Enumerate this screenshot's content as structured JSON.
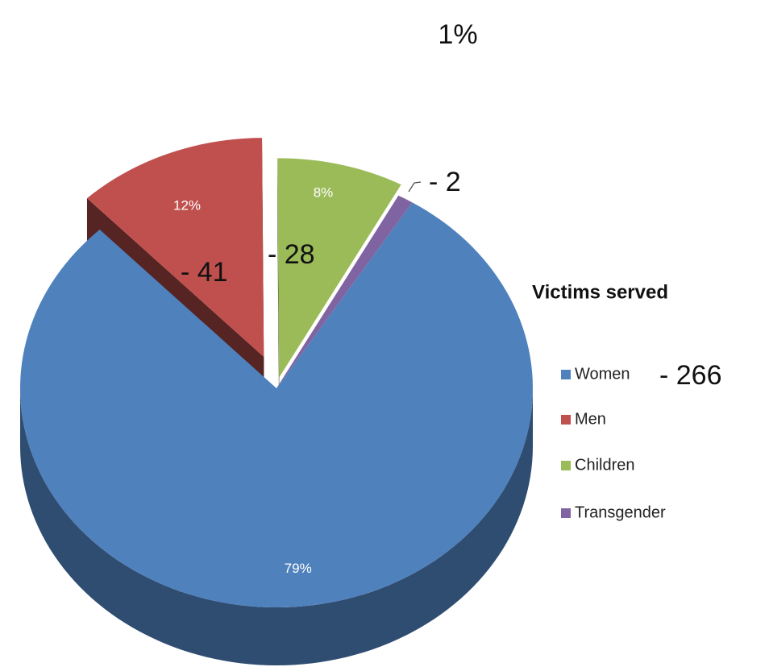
{
  "chart_data": {
    "type": "pie",
    "legend_title": "Victims served",
    "categories": [
      "Women",
      "Men",
      "Children",
      "Transgender"
    ],
    "values": [
      79,
      12,
      8,
      1
    ],
    "value_labels": [
      "79%",
      "12%",
      "8%",
      "1%"
    ],
    "colors": [
      "#4f81bd",
      "#c0504d",
      "#9bbb59",
      "#8064a2"
    ],
    "annotations": [
      "- 266",
      "- 41",
      "- 28",
      "- 2"
    ],
    "legend": "right"
  }
}
